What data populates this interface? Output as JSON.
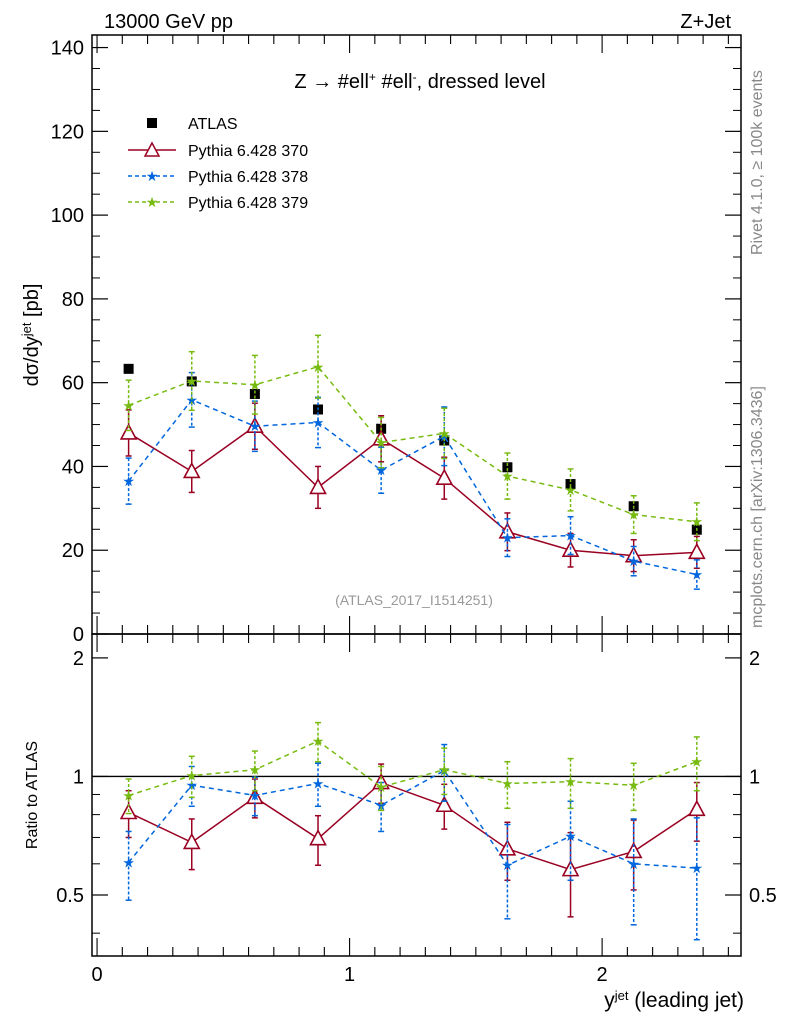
{
  "header": {
    "left": "13000 GeV pp",
    "right": "Z+Jet"
  },
  "side_labels": {
    "rivet": "Rivet 4.1.0, ≥ 100k events",
    "mcplots": "mcplots.cern.ch [arXiv:1306.3436]"
  },
  "colors": {
    "atlas": "#000000",
    "p370": "#990022",
    "p378": "#0066dd",
    "p379": "#77bb11",
    "watermark": "#999999",
    "side": "#888888"
  },
  "chart_data": [
    {
      "type": "scatter",
      "panel": "main",
      "title": "Z → #ell⁺ #ell⁻, dressed level",
      "watermark": "(ATLAS_2017_I1514251)",
      "ylabel": "dσ/dy^jet [pb]",
      "xlim": [
        -0.02,
        2.55
      ],
      "ylim": [
        0,
        143
      ],
      "yticks": [
        0,
        20,
        40,
        60,
        80,
        100,
        120,
        140
      ],
      "ytick_labels": [
        "0",
        "20",
        "40",
        "60",
        "80",
        "100",
        "120",
        "140"
      ],
      "x": [
        0.125,
        0.375,
        0.625,
        0.875,
        1.125,
        1.375,
        1.625,
        1.875,
        2.125,
        2.375
      ],
      "series": [
        {
          "name": "ATLAS",
          "key": "atlas",
          "style": "square",
          "values": [
            63.3,
            60.3,
            57.3,
            53.6,
            49.0,
            46.2,
            39.8,
            35.8,
            30.5,
            24.9
          ],
          "errors": [
            0.8,
            0.8,
            0.8,
            0.8,
            0.8,
            0.8,
            0.8,
            0.8,
            0.8,
            0.8
          ]
        },
        {
          "name": "Pythia 6.428 370",
          "key": "p370",
          "style": "triangle",
          "values": [
            48.0,
            38.8,
            49.6,
            35.0,
            46.6,
            37.2,
            24.4,
            20.0,
            18.7,
            19.5
          ],
          "errors": [
            5.5,
            5.0,
            5.5,
            5.0,
            5.5,
            5.0,
            4.5,
            4.0,
            3.8,
            3.8
          ]
        },
        {
          "name": "Pythia 6.428 378",
          "key": "p378",
          "style": "star-dashed",
          "values": [
            36.5,
            55.9,
            49.6,
            50.5,
            39.1,
            47.2,
            23.0,
            23.5,
            17.4,
            14.2
          ],
          "errors": [
            5.5,
            6.5,
            6.0,
            6.0,
            5.5,
            7.0,
            4.5,
            4.5,
            3.5,
            3.5
          ]
        },
        {
          "name": "Pythia 6.428 379",
          "key": "p379",
          "style": "star-dashed",
          "values": [
            54.6,
            60.4,
            59.5,
            63.8,
            45.7,
            47.9,
            37.7,
            34.4,
            28.5,
            26.8
          ],
          "errors": [
            6.0,
            7.0,
            7.0,
            7.5,
            6.0,
            6.0,
            5.5,
            5.0,
            4.5,
            4.5
          ]
        }
      ]
    },
    {
      "type": "scatter",
      "panel": "ratio",
      "ylabel": "Ratio to ATLAS",
      "xlabel": "y^jet (leading jet)",
      "xlim": [
        -0.02,
        2.55
      ],
      "ylim": [
        0.35,
        2.3
      ],
      "yticks": [
        0.5,
        1,
        2
      ],
      "ytick_labels": [
        "0.5",
        "1",
        "2"
      ],
      "xticks": [
        0,
        1,
        2
      ],
      "xtick_labels": [
        "0",
        "1",
        "2"
      ],
      "reference": 1,
      "x": [
        0.125,
        0.375,
        0.625,
        0.875,
        1.125,
        1.375,
        1.625,
        1.875,
        2.125,
        2.375
      ],
      "series": [
        {
          "name": "Pythia 6.428 370",
          "key": "p370",
          "style": "triangle",
          "values": [
            0.81,
            0.68,
            0.885,
            0.695,
            0.965,
            0.845,
            0.655,
            0.58,
            0.645,
            0.825
          ],
          "errors": [
            0.11,
            0.1,
            0.1,
            0.1,
            0.11,
            0.11,
            0.11,
            0.14,
            0.13,
            0.14
          ]
        },
        {
          "name": "Pythia 6.428 378",
          "key": "p378",
          "style": "star-dashed",
          "values": [
            0.605,
            0.95,
            0.895,
            0.96,
            0.845,
            1.035,
            0.595,
            0.705,
            0.6,
            0.585
          ],
          "errors": [
            0.12,
            0.11,
            0.1,
            0.12,
            0.12,
            0.17,
            0.16,
            0.16,
            0.18,
            0.2
          ]
        },
        {
          "name": "Pythia 6.428 379",
          "key": "p379",
          "style": "star-dashed",
          "values": [
            0.895,
            1.005,
            1.04,
            1.23,
            0.94,
            1.04,
            0.96,
            0.97,
            0.95,
            1.09
          ],
          "errors": [
            0.09,
            0.12,
            0.12,
            0.14,
            0.12,
            0.14,
            0.13,
            0.14,
            0.13,
            0.17
          ]
        }
      ]
    }
  ]
}
